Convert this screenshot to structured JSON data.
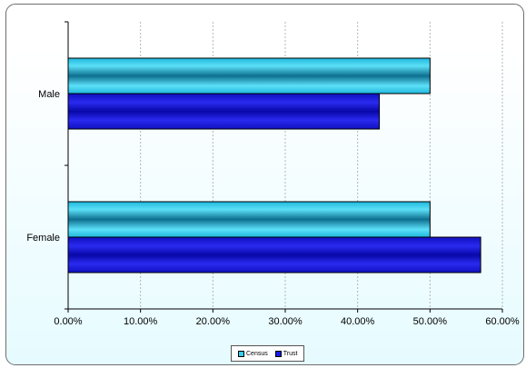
{
  "chart_data": {
    "type": "bar",
    "orientation": "horizontal",
    "title": "",
    "xlabel": "",
    "ylabel": "",
    "categories": [
      "Male",
      "Female"
    ],
    "series": [
      {
        "name": "Census",
        "values": [
          50.0,
          50.0
        ],
        "color": "#33ccee"
      },
      {
        "name": "Trust",
        "values": [
          43.0,
          57.0
        ],
        "color": "#1a1ae6"
      }
    ],
    "xlim": [
      0,
      60
    ],
    "x_ticks": [
      "0.00%",
      "10.00%",
      "20.00%",
      "30.00%",
      "40.00%",
      "50.00%",
      "60.00%"
    ],
    "x_tick_values": [
      0,
      10,
      20,
      30,
      40,
      50,
      60
    ],
    "gridlines": "vertical-dashed",
    "legend_position": "bottom"
  }
}
